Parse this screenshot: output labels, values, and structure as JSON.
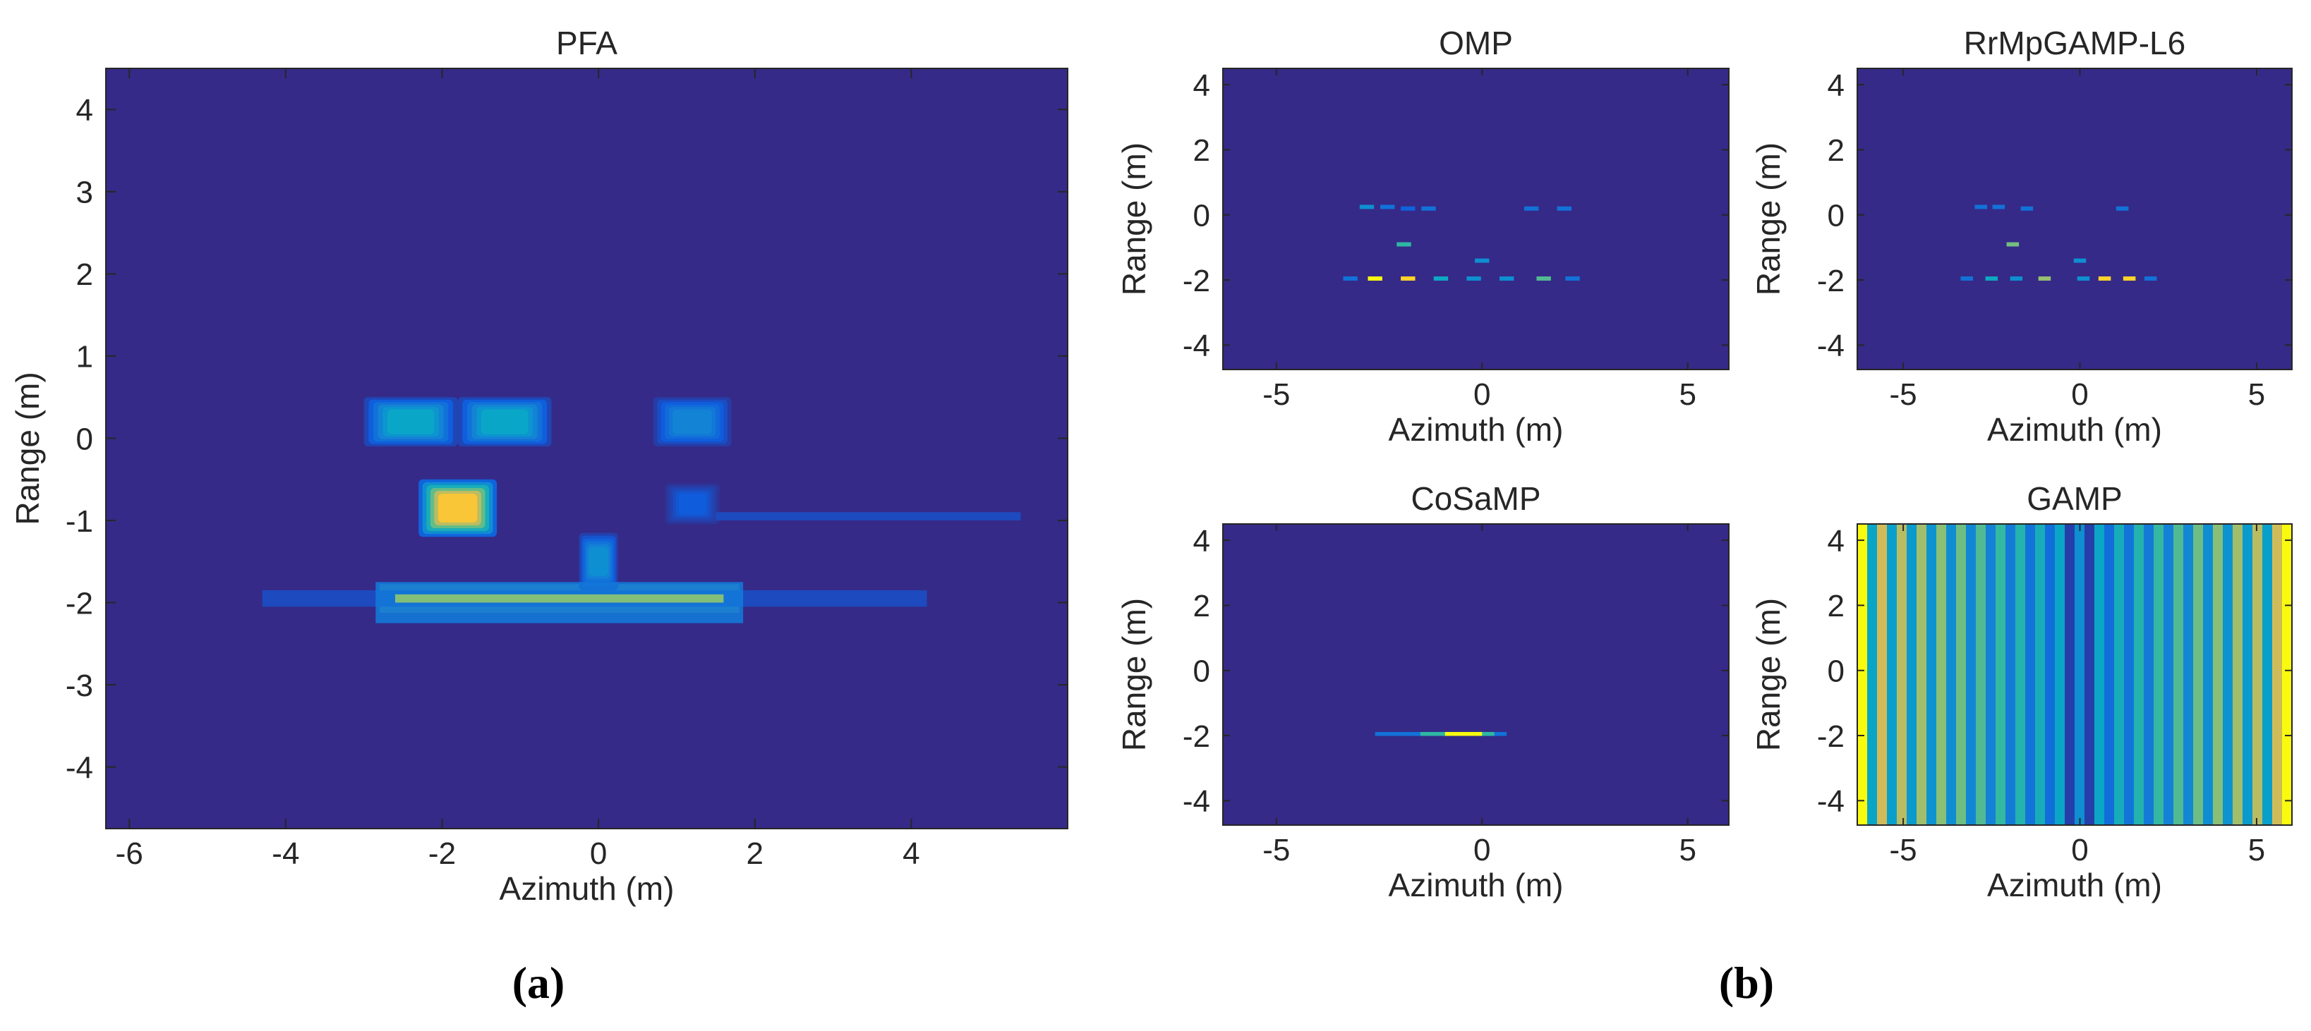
{
  "figure": {
    "panel_labels": [
      "(a)",
      "(b)"
    ]
  },
  "colors": {
    "background_min": "#352a87",
    "colormap": [
      "#352a87",
      "#0f5cdd",
      "#1481d6",
      "#06a4ca",
      "#2eb7a4",
      "#87bf77",
      "#d1bb59",
      "#fec832",
      "#f9fb0e"
    ],
    "axes_frame": "#262626"
  },
  "chart_data": [
    {
      "id": "pfa",
      "type": "heatmap",
      "title": "PFA",
      "xlabel": "Azimuth (m)",
      "ylabel": "Range (m)",
      "xlim": [
        -6.3,
        6
      ],
      "ylim": [
        -4.75,
        4.5
      ],
      "xticks": [
        -6,
        -4,
        -2,
        0,
        2,
        4
      ],
      "yticks": [
        -4,
        -3,
        -2,
        -1,
        0,
        1,
        2,
        3,
        4
      ],
      "colormap": "parula",
      "features": [
        {
          "kind": "blob",
          "x": -2.4,
          "y": 0.2,
          "rx": 0.6,
          "ry": 0.3,
          "intensity": 0.45
        },
        {
          "kind": "blob",
          "x": -1.2,
          "y": 0.2,
          "rx": 0.6,
          "ry": 0.3,
          "intensity": 0.45
        },
        {
          "kind": "blob",
          "x": 1.2,
          "y": 0.2,
          "rx": 0.5,
          "ry": 0.3,
          "intensity": 0.3
        },
        {
          "kind": "blob",
          "x": -1.8,
          "y": -0.85,
          "rx": 0.5,
          "ry": 0.35,
          "intensity": 1.0
        },
        {
          "kind": "blob",
          "x": 1.2,
          "y": -0.8,
          "rx": 0.35,
          "ry": 0.25,
          "intensity": 0.15
        },
        {
          "kind": "bar",
          "x0": 1.5,
          "x1": 5.4,
          "y": -0.95,
          "thickness": 0.1,
          "intensity": 0.08
        },
        {
          "kind": "bar",
          "x0": -2.8,
          "x1": 1.8,
          "y": -1.95,
          "thickness": 0.35,
          "intensity": 0.6
        },
        {
          "kind": "bar",
          "x0": -4.3,
          "x1": 4.2,
          "y": -1.95,
          "thickness": 0.2,
          "intensity": 0.08
        },
        {
          "kind": "blob",
          "x": 0.0,
          "y": -1.5,
          "rx": 0.25,
          "ry": 0.35,
          "intensity": 0.35
        }
      ]
    },
    {
      "id": "omp",
      "type": "heatmap",
      "title": "OMP",
      "xlabel": "Azimuth (m)",
      "ylabel": "Range (m)",
      "xlim": [
        -6.3,
        6
      ],
      "ylim": [
        -4.75,
        4.5
      ],
      "xticks": [
        -5,
        0,
        5
      ],
      "yticks": [
        -4,
        -2,
        0,
        2,
        4
      ],
      "colormap": "parula",
      "features": [
        {
          "kind": "dash",
          "x": -2.8,
          "y": 0.25,
          "intensity": 0.3
        },
        {
          "kind": "dash",
          "x": -2.3,
          "y": 0.25,
          "intensity": 0.2
        },
        {
          "kind": "dash",
          "x": -1.8,
          "y": 0.2,
          "intensity": 0.15
        },
        {
          "kind": "dash",
          "x": -1.3,
          "y": 0.2,
          "intensity": 0.2
        },
        {
          "kind": "dash",
          "x": 1.2,
          "y": 0.2,
          "intensity": 0.2
        },
        {
          "kind": "dash",
          "x": 2.0,
          "y": 0.2,
          "intensity": 0.2
        },
        {
          "kind": "dash",
          "x": -1.9,
          "y": -0.9,
          "intensity": 0.5
        },
        {
          "kind": "dash",
          "x": 0.0,
          "y": -1.4,
          "intensity": 0.3
        },
        {
          "kind": "dash",
          "x": -2.6,
          "y": -1.95,
          "intensity": 1.0
        },
        {
          "kind": "dash",
          "x": -1.8,
          "y": -1.95,
          "intensity": 0.9
        },
        {
          "kind": "dash",
          "x": -1.0,
          "y": -1.95,
          "intensity": 0.4
        },
        {
          "kind": "dash",
          "x": -0.2,
          "y": -1.95,
          "intensity": 0.3
        },
        {
          "kind": "dash",
          "x": 0.6,
          "y": -1.95,
          "intensity": 0.3
        },
        {
          "kind": "dash",
          "x": 1.5,
          "y": -1.95,
          "intensity": 0.55
        },
        {
          "kind": "dash",
          "x": 2.2,
          "y": -1.95,
          "intensity": 0.2
        },
        {
          "kind": "dash",
          "x": -3.2,
          "y": -1.95,
          "intensity": 0.2
        }
      ]
    },
    {
      "id": "rrmpgamp",
      "type": "heatmap",
      "title": "RrMpGAMP-L6",
      "xlabel": "Azimuth (m)",
      "ylabel": "Range (m)",
      "xlim": [
        -6.3,
        6
      ],
      "ylim": [
        -4.75,
        4.5
      ],
      "xticks": [
        -5,
        0,
        5
      ],
      "yticks": [
        -4,
        -2,
        0,
        2,
        4
      ],
      "colormap": "parula",
      "features": [
        {
          "kind": "dash",
          "x": -2.8,
          "y": 0.25,
          "intensity": 0.2
        },
        {
          "kind": "dash",
          "x": -2.3,
          "y": 0.25,
          "intensity": 0.2
        },
        {
          "kind": "dash",
          "x": -1.5,
          "y": 0.2,
          "intensity": 0.2
        },
        {
          "kind": "dash",
          "x": 1.2,
          "y": 0.2,
          "intensity": 0.2
        },
        {
          "kind": "dash",
          "x": -1.9,
          "y": -0.9,
          "intensity": 0.6
        },
        {
          "kind": "dash",
          "x": 0.0,
          "y": -1.4,
          "intensity": 0.3
        },
        {
          "kind": "dash",
          "x": -3.2,
          "y": -1.95,
          "intensity": 0.2
        },
        {
          "kind": "dash",
          "x": -2.5,
          "y": -1.95,
          "intensity": 0.4
        },
        {
          "kind": "dash",
          "x": -1.8,
          "y": -1.95,
          "intensity": 0.3
        },
        {
          "kind": "dash",
          "x": -1.0,
          "y": -1.95,
          "intensity": 0.65
        },
        {
          "kind": "dash",
          "x": 0.1,
          "y": -1.95,
          "intensity": 0.3
        },
        {
          "kind": "dash",
          "x": 0.7,
          "y": -1.95,
          "intensity": 0.9
        },
        {
          "kind": "dash",
          "x": 1.4,
          "y": -1.95,
          "intensity": 0.9
        },
        {
          "kind": "dash",
          "x": 2.0,
          "y": -1.95,
          "intensity": 0.2
        }
      ]
    },
    {
      "id": "cosamp",
      "type": "heatmap",
      "title": "CoSaMP",
      "xlabel": "Azimuth (m)",
      "ylabel": "Range (m)",
      "xlim": [
        -6.3,
        6
      ],
      "ylim": [
        -4.75,
        4.5
      ],
      "xticks": [
        -5,
        0,
        5
      ],
      "yticks": [
        -4,
        -2,
        0,
        2,
        4
      ],
      "colormap": "parula",
      "features": [
        {
          "kind": "bar",
          "x0": -2.6,
          "x1": 0.6,
          "y": -1.95,
          "thickness": 0.12,
          "intensity": 0.2
        },
        {
          "kind": "bar",
          "x0": -1.5,
          "x1": 0.3,
          "y": -1.95,
          "thickness": 0.12,
          "intensity": 0.5
        },
        {
          "kind": "bar",
          "x0": -0.9,
          "x1": 0.0,
          "y": -1.95,
          "thickness": 0.12,
          "intensity": 1.0
        }
      ]
    },
    {
      "id": "gamp",
      "type": "heatmap",
      "title": "GAMP",
      "xlabel": "Azimuth (m)",
      "ylabel": "Range (m)",
      "xlim": [
        -6.3,
        6
      ],
      "ylim": [
        -4.75,
        4.5
      ],
      "xticks": [
        -5,
        0,
        5
      ],
      "yticks": [
        -4,
        -2,
        0,
        2,
        4
      ],
      "colormap": "parula",
      "pattern": "vertical-stripes"
    }
  ]
}
